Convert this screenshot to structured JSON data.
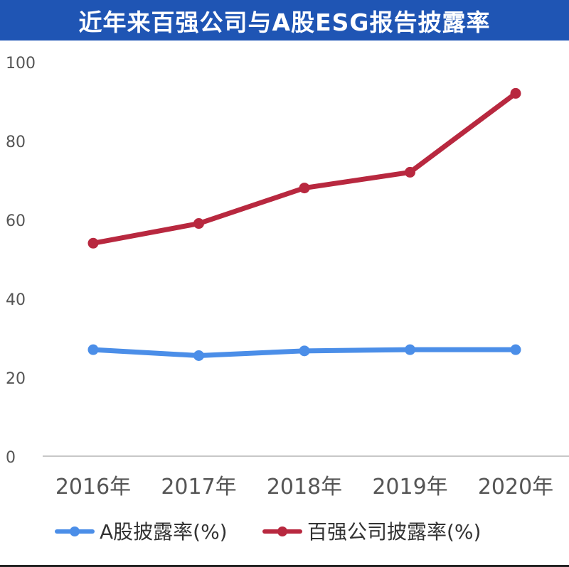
{
  "header": {
    "title": "近年来百强公司与A股ESG报告披露率"
  },
  "chart_data": {
    "type": "line",
    "title": "近年来百强公司与A股ESG报告披露率",
    "xlabel": "",
    "ylabel": "",
    "categories": [
      "2016年",
      "2017年",
      "2018年",
      "2019年",
      "2020年"
    ],
    "ylim": [
      0,
      100
    ],
    "yticks": [
      0,
      20,
      40,
      60,
      80,
      100
    ],
    "grid": false,
    "legend_position": "bottom",
    "series": [
      {
        "name": "A股披露率(%)",
        "values": [
          27,
          25.5,
          26.7,
          27,
          27
        ],
        "color": "#4b8ee8"
      },
      {
        "name": "百强公司披露率(%)",
        "values": [
          54,
          59,
          68,
          72,
          92
        ],
        "color": "#b8283f"
      }
    ]
  },
  "colors": {
    "title_bg": "#1f55b4",
    "title_text": "#ffffff",
    "axis_text": "#555555"
  }
}
